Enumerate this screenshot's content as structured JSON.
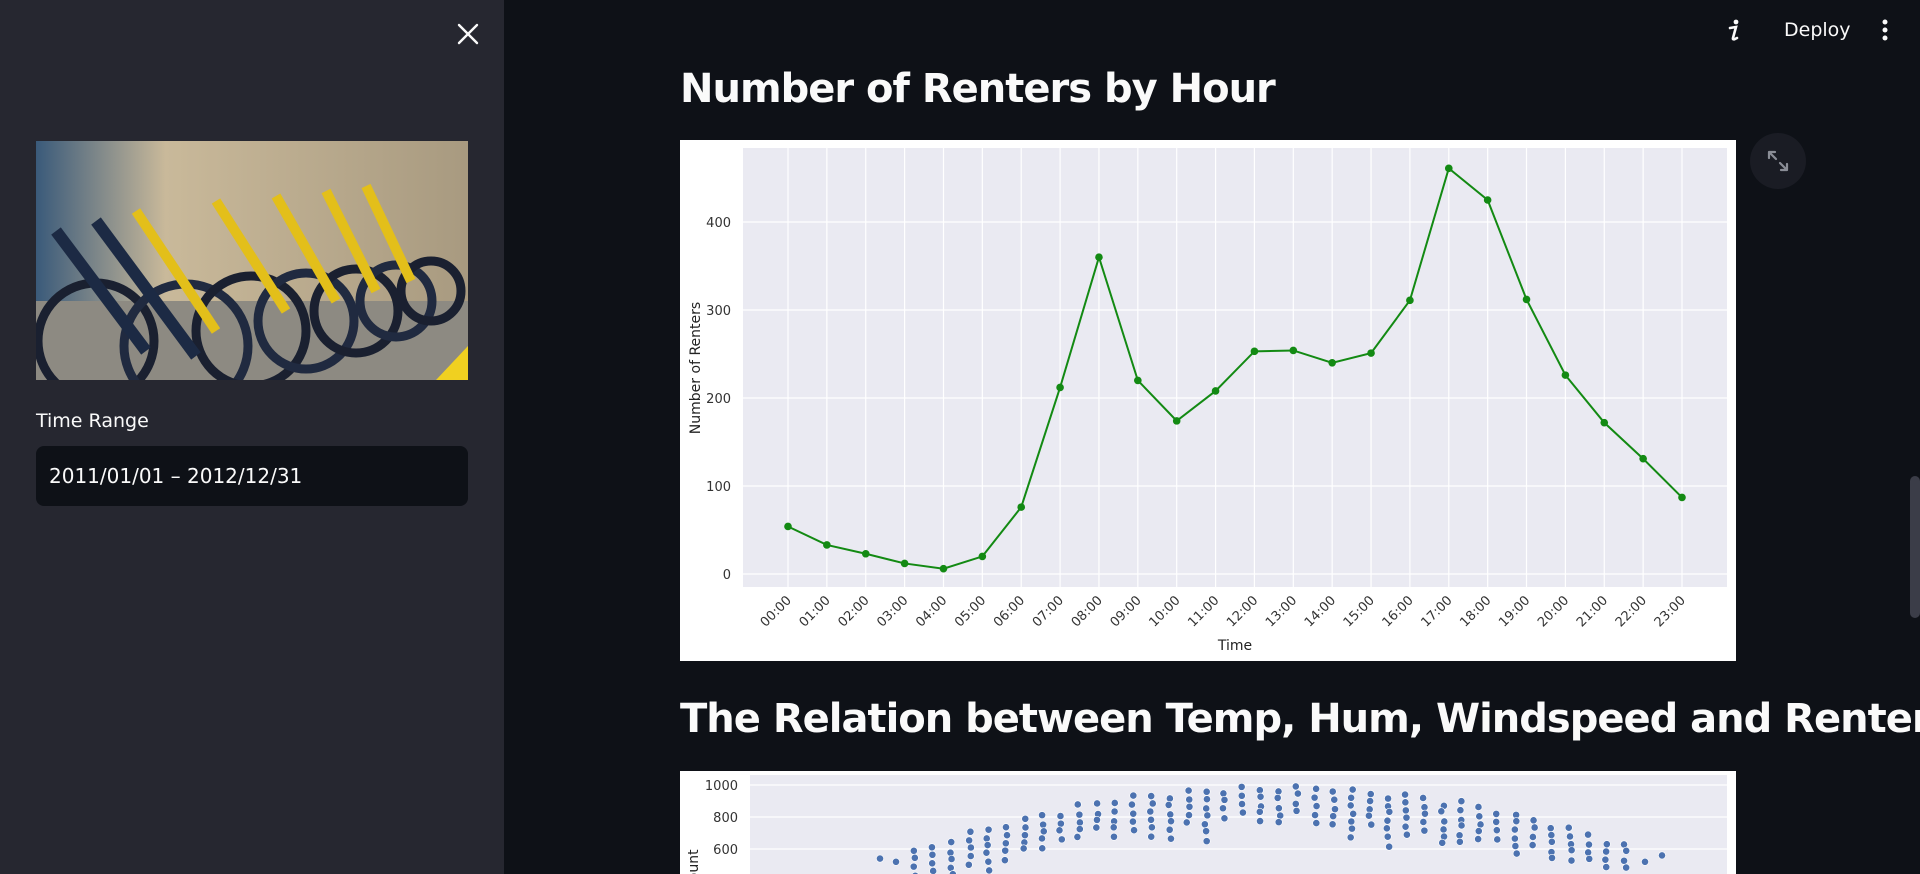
{
  "sidebar": {
    "time_range_label": "Time Range",
    "time_range_value": "2011/01/01 – 2012/12/31"
  },
  "toolbar": {
    "deploy_label": "Deploy"
  },
  "sections": {
    "hourly_title": "Number of Renters by Hour",
    "relation_title": "The Relation between Temp, Hum, Windspeed and Renters"
  },
  "colors": {
    "sidebar_bg": "#262730",
    "main_bg": "#0e1117",
    "line_color": "#138a13",
    "scatter_color": "#4c72b0",
    "plot_bg": "#eaeaf2"
  },
  "chart_data": [
    {
      "type": "line",
      "xlabel": "Time",
      "ylabel": "Number of Renters",
      "x": [
        "00:00",
        "01:00",
        "02:00",
        "03:00",
        "04:00",
        "05:00",
        "06:00",
        "07:00",
        "08:00",
        "09:00",
        "10:00",
        "11:00",
        "12:00",
        "13:00",
        "14:00",
        "15:00",
        "16:00",
        "17:00",
        "18:00",
        "19:00",
        "20:00",
        "21:00",
        "22:00",
        "23:00"
      ],
      "values": [
        54,
        33,
        23,
        12,
        6,
        20,
        76,
        212,
        360,
        220,
        174,
        208,
        253,
        254,
        240,
        251,
        311,
        461,
        425,
        312,
        226,
        172,
        131,
        87
      ],
      "yticks": [
        0,
        100,
        200,
        300,
        400
      ],
      "ylim": [
        -8,
        480
      ],
      "grid": true
    },
    {
      "type": "scatter",
      "ylabel": "Count",
      "yticks": [
        600,
        800,
        1000
      ],
      "ylim": [
        0,
        1020
      ],
      "grid": true,
      "partially_visible": true
    }
  ]
}
